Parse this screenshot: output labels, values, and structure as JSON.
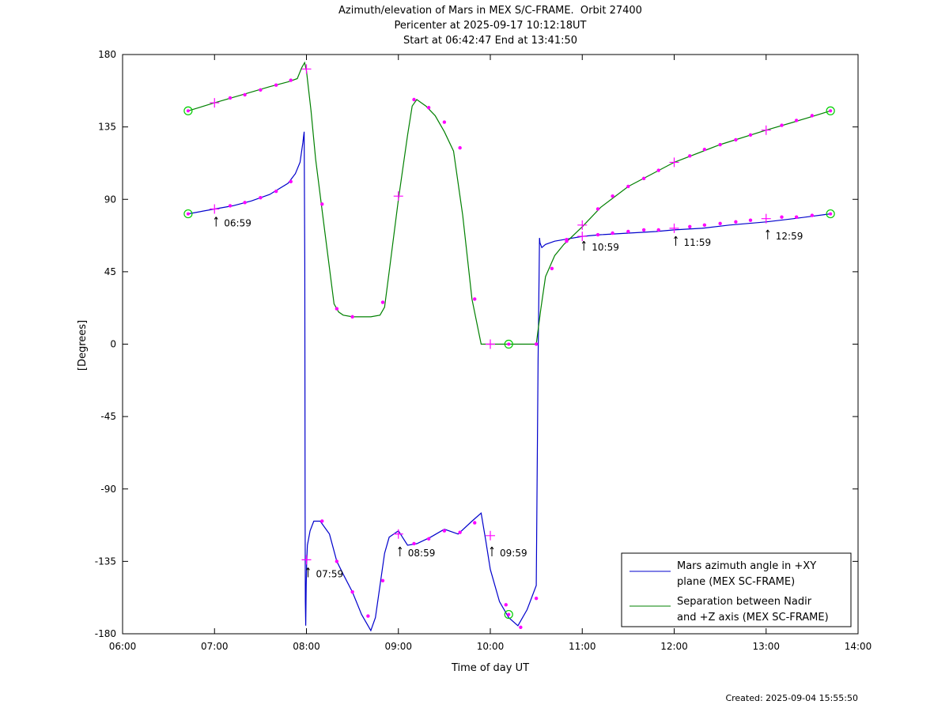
{
  "title_lines": [
    "Azimuth/elevation of Mars in MEX S/C-FRAME.  Orbit 27400",
    "Pericenter at 2025-09-17 10:12:18UT",
    "Start at 06:42:47 End at 13:41:50"
  ],
  "footer": "Created: 2025-09-04 15:55:50",
  "chart_data": {
    "type": "line",
    "xlabel": "Time of day UT",
    "ylabel": "[Degrees]",
    "xlim": [
      6.0,
      14.0
    ],
    "ylim": [
      -180,
      180
    ],
    "x_ticks": [
      6,
      7,
      8,
      9,
      10,
      11,
      12,
      13,
      14
    ],
    "x_tick_labels": [
      "06:00",
      "07:00",
      "08:00",
      "09:00",
      "10:00",
      "11:00",
      "12:00",
      "13:00",
      "14:00"
    ],
    "y_ticks": [
      180,
      135,
      90,
      45,
      0,
      -45,
      -90,
      -135,
      -180
    ],
    "y_tick_labels": [
      "180",
      "135",
      "90",
      "45",
      "0",
      "-45",
      "-90",
      "-135",
      "-180"
    ],
    "grid": false,
    "legend_position": "bottom-right",
    "colors": {
      "azimuth": "#0000cc",
      "separation": "#008000",
      "markers": "#ff00ff",
      "endpoints": "#00cc00"
    },
    "series": [
      {
        "name": "Mars azimuth angle in +XY plane (MEX SC-FRAME)",
        "legend_lines": [
          "Mars azimuth angle in +XY",
          "plane (MEX SC-FRAME)"
        ],
        "color": "#0000cc",
        "x": [
          6.713,
          7.0,
          7.2,
          7.4,
          7.6,
          7.8,
          7.88,
          7.93,
          7.96,
          7.975,
          7.982,
          7.985,
          7.988,
          7.992,
          7.997,
          8.003,
          8.01,
          8.04,
          8.08,
          8.15,
          8.25,
          8.33,
          8.4,
          8.5,
          8.6,
          8.7,
          8.75,
          8.8,
          8.85,
          8.9,
          9.0,
          9.1,
          9.2,
          9.35,
          9.5,
          9.65,
          9.8,
          9.9,
          9.95,
          10.0,
          10.1,
          10.2,
          10.3,
          10.4,
          10.5,
          10.52,
          10.53,
          10.535,
          10.54,
          10.56,
          10.6,
          10.7,
          10.8,
          11.0,
          11.2,
          11.5,
          11.8,
          12.0,
          12.3,
          12.6,
          13.0,
          13.3,
          13.7
        ],
        "y": [
          81,
          84,
          86,
          89,
          93,
          100,
          106,
          113,
          125,
          132,
          50,
          -100,
          -160,
          -175,
          -150,
          -135,
          -125,
          -116,
          -110,
          -110,
          -118,
          -135,
          -143,
          -154,
          -168,
          -178,
          -170,
          -150,
          -130,
          -120,
          -116,
          -125,
          -124,
          -120,
          -115,
          -118,
          -110,
          -105,
          -122,
          -140,
          -160,
          -170,
          -175,
          -165,
          -150,
          -10,
          40,
          66,
          63,
          60,
          62,
          64,
          65,
          67,
          68,
          69,
          70,
          71,
          72,
          74,
          76,
          78,
          81
        ],
        "labels": [
          {
            "x": 7.0,
            "y": 81,
            "text": "06:59"
          },
          {
            "x": 8.0,
            "y": -137,
            "text": "07:59"
          },
          {
            "x": 9.0,
            "y": -124,
            "text": "08:59"
          },
          {
            "x": 10.0,
            "y": -124,
            "text": "09:59"
          },
          {
            "x": 11.0,
            "y": 66,
            "text": "10:59"
          },
          {
            "x": 12.0,
            "y": 69,
            "text": "11:59"
          },
          {
            "x": 13.0,
            "y": 73,
            "text": "12:59"
          }
        ]
      },
      {
        "name": "Separation between Nadir and +Z axis (MEX SC-FRAME)",
        "legend_lines": [
          "Separation between Nadir",
          "and +Z axis (MEX SC-FRAME)"
        ],
        "color": "#008000",
        "x": [
          6.713,
          7.0,
          7.3,
          7.6,
          7.8,
          7.9,
          7.95,
          7.98,
          8.0,
          8.05,
          8.1,
          8.2,
          8.3,
          8.35,
          8.4,
          8.5,
          8.6,
          8.7,
          8.8,
          8.85,
          8.9,
          9.0,
          9.1,
          9.15,
          9.2,
          9.3,
          9.4,
          9.5,
          9.6,
          9.7,
          9.8,
          9.9,
          10.0,
          10.1,
          10.2,
          10.3,
          10.4,
          10.5,
          10.55,
          10.6,
          10.7,
          10.8,
          11.0,
          11.2,
          11.5,
          12.0,
          12.5,
          13.0,
          13.3,
          13.7
        ],
        "y": [
          145,
          150,
          155,
          160,
          163,
          165,
          172,
          175,
          170,
          145,
          115,
          70,
          25,
          20,
          18,
          17,
          17,
          17,
          18,
          23,
          45,
          90,
          130,
          148,
          152,
          148,
          142,
          132,
          120,
          80,
          28,
          0,
          0,
          0,
          0,
          0,
          0,
          0,
          22,
          42,
          55,
          62,
          73,
          85,
          98,
          113,
          124,
          133,
          138,
          145
        ]
      }
    ],
    "endpoint_markers": [
      {
        "x": 6.713,
        "y": 145
      },
      {
        "x": 6.713,
        "y": 81
      },
      {
        "x": 13.7,
        "y": 145
      },
      {
        "x": 13.7,
        "y": 81
      },
      {
        "x": 10.2,
        "y": 0
      },
      {
        "x": 10.2,
        "y": -168
      }
    ],
    "hour_cross_markers": [
      {
        "x": 7.0,
        "y": 150
      },
      {
        "x": 7.0,
        "y": 84
      },
      {
        "x": 8.0,
        "y": 171
      },
      {
        "x": 8.0,
        "y": -134
      },
      {
        "x": 9.0,
        "y": 92
      },
      {
        "x": 9.0,
        "y": -118
      },
      {
        "x": 10.0,
        "y": 0
      },
      {
        "x": 10.0,
        "y": -119
      },
      {
        "x": 11.0,
        "y": 74
      },
      {
        "x": 11.0,
        "y": 67
      },
      {
        "x": 12.0,
        "y": 113
      },
      {
        "x": 12.0,
        "y": 72
      },
      {
        "x": 13.0,
        "y": 133
      },
      {
        "x": 13.0,
        "y": 78
      }
    ],
    "dot_markers": [
      {
        "x": 7.17,
        "y": 153
      },
      {
        "x": 7.33,
        "y": 155
      },
      {
        "x": 7.5,
        "y": 158
      },
      {
        "x": 7.67,
        "y": 161
      },
      {
        "x": 7.83,
        "y": 164
      },
      {
        "x": 8.17,
        "y": 87
      },
      {
        "x": 8.33,
        "y": 22
      },
      {
        "x": 8.5,
        "y": 17
      },
      {
        "x": 8.83,
        "y": 26
      },
      {
        "x": 9.17,
        "y": 152
      },
      {
        "x": 9.33,
        "y": 147
      },
      {
        "x": 9.5,
        "y": 138
      },
      {
        "x": 9.67,
        "y": 122
      },
      {
        "x": 9.83,
        "y": 28
      },
      {
        "x": 10.5,
        "y": 0
      },
      {
        "x": 10.67,
        "y": 47
      },
      {
        "x": 10.83,
        "y": 64
      },
      {
        "x": 11.17,
        "y": 84
      },
      {
        "x": 11.33,
        "y": 92
      },
      {
        "x": 11.5,
        "y": 98
      },
      {
        "x": 11.67,
        "y": 103
      },
      {
        "x": 11.83,
        "y": 108
      },
      {
        "x": 12.17,
        "y": 117
      },
      {
        "x": 12.33,
        "y": 121
      },
      {
        "x": 12.5,
        "y": 124
      },
      {
        "x": 12.67,
        "y": 127
      },
      {
        "x": 12.83,
        "y": 130
      },
      {
        "x": 13.17,
        "y": 136
      },
      {
        "x": 13.33,
        "y": 139
      },
      {
        "x": 13.5,
        "y": 142
      },
      {
        "x": 7.17,
        "y": 86
      },
      {
        "x": 7.33,
        "y": 88
      },
      {
        "x": 7.5,
        "y": 91
      },
      {
        "x": 7.67,
        "y": 95
      },
      {
        "x": 7.83,
        "y": 101
      },
      {
        "x": 8.17,
        "y": -110
      },
      {
        "x": 8.33,
        "y": -135
      },
      {
        "x": 8.5,
        "y": -154
      },
      {
        "x": 8.67,
        "y": -169
      },
      {
        "x": 8.83,
        "y": -147
      },
      {
        "x": 9.17,
        "y": -124
      },
      {
        "x": 9.33,
        "y": -121
      },
      {
        "x": 9.5,
        "y": -116
      },
      {
        "x": 9.67,
        "y": -117
      },
      {
        "x": 9.83,
        "y": -111
      },
      {
        "x": 10.17,
        "y": -162
      },
      {
        "x": 10.33,
        "y": -176
      },
      {
        "x": 10.5,
        "y": -158
      },
      {
        "x": 10.83,
        "y": 65
      },
      {
        "x": 11.17,
        "y": 68
      },
      {
        "x": 11.33,
        "y": 69
      },
      {
        "x": 11.5,
        "y": 70
      },
      {
        "x": 11.67,
        "y": 71
      },
      {
        "x": 11.83,
        "y": 71
      },
      {
        "x": 12.17,
        "y": 73
      },
      {
        "x": 12.33,
        "y": 74
      },
      {
        "x": 12.5,
        "y": 75
      },
      {
        "x": 12.67,
        "y": 76
      },
      {
        "x": 12.83,
        "y": 77
      },
      {
        "x": 13.17,
        "y": 79
      },
      {
        "x": 13.33,
        "y": 79
      },
      {
        "x": 13.5,
        "y": 80
      }
    ]
  }
}
